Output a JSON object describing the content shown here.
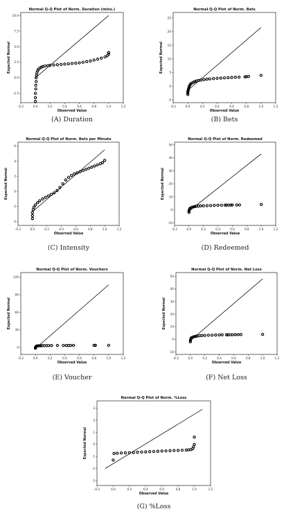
{
  "chart_data": [
    {
      "type": "scatter",
      "title": "Normal Q-Q Plot of Norm. Duration (mins.)",
      "xlabel": "Observed Value",
      "ylabel": "Expected Normal",
      "caption": "(A) Duration",
      "xlim": [
        -0.2,
        1.2
      ],
      "ylim": [
        -4,
        10.5
      ],
      "xticks": [
        -0.2,
        0.0,
        0.2,
        0.4,
        0.6,
        0.8,
        1.0,
        1.2
      ],
      "xtick_labels": [
        "-0.2",
        "0.0",
        "0.2",
        "0.4",
        "0.6",
        "0.8",
        "1.0",
        "1.2"
      ],
      "yticks": [
        -2.5,
        0.0,
        2.5,
        5.0,
        7.5,
        10.0
      ],
      "ytick_labels": [
        "-2.5",
        "0.0",
        "2.5",
        "5.0",
        "7.5",
        "10.0"
      ],
      "reference_line": [
        [
          0.0,
          0.0
        ],
        [
          1.0,
          10.0
        ]
      ],
      "points": [
        [
          0.0,
          -3.8
        ],
        [
          0.0,
          -3.2
        ],
        [
          0.0,
          -2.5
        ],
        [
          0.005,
          -1.8
        ],
        [
          0.005,
          -1.2
        ],
        [
          0.01,
          -0.6
        ],
        [
          0.01,
          0.0
        ],
        [
          0.015,
          0.4
        ],
        [
          0.02,
          0.8
        ],
        [
          0.03,
          1.1
        ],
        [
          0.04,
          1.35
        ],
        [
          0.06,
          1.55
        ],
        [
          0.08,
          1.7
        ],
        [
          0.1,
          1.8
        ],
        [
          0.13,
          1.9
        ],
        [
          0.17,
          1.95
        ],
        [
          0.2,
          2.0
        ],
        [
          0.25,
          2.05
        ],
        [
          0.3,
          2.1
        ],
        [
          0.35,
          2.15
        ],
        [
          0.4,
          2.2
        ],
        [
          0.45,
          2.25
        ],
        [
          0.5,
          2.3
        ],
        [
          0.55,
          2.35
        ],
        [
          0.6,
          2.4
        ],
        [
          0.65,
          2.5
        ],
        [
          0.7,
          2.6
        ],
        [
          0.75,
          2.7
        ],
        [
          0.8,
          2.85
        ],
        [
          0.85,
          3.0
        ],
        [
          0.9,
          3.15
        ],
        [
          0.95,
          3.35
        ],
        [
          0.98,
          3.55
        ],
        [
          1.0,
          3.8
        ],
        [
          1.0,
          4.05
        ]
      ]
    },
    {
      "type": "scatter",
      "title": "Normal Q-Q Plot of Norm. Bets",
      "xlabel": "Observed Value",
      "ylabel": "Expected Normal",
      "caption": "(B) Bets",
      "xlim": [
        -0.2,
        1.2
      ],
      "ylim": [
        -6,
        27
      ],
      "xticks": [
        -0.2,
        0.0,
        0.2,
        0.4,
        0.6,
        0.8,
        1.0,
        1.2
      ],
      "xtick_labels": [
        "-0.2",
        "0.0",
        "0.2",
        "0.4",
        "0.6",
        "0.8",
        "1.0",
        "1.2"
      ],
      "yticks": [
        -5,
        0,
        5,
        10,
        15,
        20,
        25
      ],
      "ytick_labels": [
        "-5",
        "0",
        "5",
        "10",
        "15",
        "20",
        "25"
      ],
      "reference_line": [
        [
          0.0,
          -1.5
        ],
        [
          1.0,
          21.5
        ]
      ],
      "points": [
        [
          0.0,
          -3.0
        ],
        [
          0.0,
          -2.5
        ],
        [
          0.0,
          -2.0
        ],
        [
          0.005,
          -1.5
        ],
        [
          0.01,
          -1.0
        ],
        [
          0.015,
          -0.5
        ],
        [
          0.02,
          0.0
        ],
        [
          0.03,
          0.5
        ],
        [
          0.04,
          0.9
        ],
        [
          0.06,
          1.2
        ],
        [
          0.08,
          1.5
        ],
        [
          0.1,
          1.75
        ],
        [
          0.12,
          1.95
        ],
        [
          0.15,
          2.15
        ],
        [
          0.18,
          2.3
        ],
        [
          0.22,
          2.45
        ],
        [
          0.26,
          2.6
        ],
        [
          0.3,
          2.7
        ],
        [
          0.35,
          2.82
        ],
        [
          0.4,
          2.92
        ],
        [
          0.45,
          3.0
        ],
        [
          0.5,
          3.08
        ],
        [
          0.55,
          3.15
        ],
        [
          0.6,
          3.22
        ],
        [
          0.65,
          3.28
        ],
        [
          0.7,
          3.33
        ],
        [
          0.78,
          3.45
        ],
        [
          0.8,
          3.5
        ],
        [
          0.83,
          3.6
        ],
        [
          1.0,
          4.0
        ]
      ]
    },
    {
      "type": "scatter",
      "title": "Normal Q-Q Plot of Norm. Bets per Minute",
      "xlabel": "Observed Value",
      "ylabel": "Expected Normal",
      "caption": "(C) Intensity",
      "xlim": [
        -0.2,
        1.2
      ],
      "ylim": [
        -4.5,
        6.5
      ],
      "xticks": [
        -0.2,
        0.0,
        0.2,
        0.4,
        0.6,
        0.8,
        1.0,
        1.2
      ],
      "xtick_labels": [
        "-0.2",
        "0.0",
        "0.2",
        "0.4",
        "0.6",
        "0.8",
        "1.0",
        "1.2"
      ],
      "yticks": [
        -4,
        -2,
        0,
        2,
        4,
        6
      ],
      "ytick_labels": [
        "-4",
        "-2",
        "0",
        "2",
        "4",
        "6"
      ],
      "reference_line": [
        [
          0.0,
          -2.7
        ],
        [
          1.0,
          5.5
        ]
      ],
      "points": [
        [
          0.0,
          -3.6
        ],
        [
          0.0,
          -3.2
        ],
        [
          0.0,
          -2.8
        ],
        [
          0.01,
          -2.4
        ],
        [
          0.02,
          -2.1
        ],
        [
          0.04,
          -1.8
        ],
        [
          0.07,
          -1.5
        ],
        [
          0.1,
          -1.25
        ],
        [
          0.14,
          -1.0
        ],
        [
          0.18,
          -0.8
        ],
        [
          0.22,
          -0.6
        ],
        [
          0.26,
          -0.4
        ],
        [
          0.3,
          -0.2
        ],
        [
          0.34,
          0.1
        ],
        [
          0.38,
          0.5
        ],
        [
          0.42,
          1.0
        ],
        [
          0.46,
          1.5
        ],
        [
          0.5,
          1.85
        ],
        [
          0.54,
          2.1
        ],
        [
          0.58,
          2.3
        ],
        [
          0.62,
          2.45
        ],
        [
          0.66,
          2.6
        ],
        [
          0.7,
          2.75
        ],
        [
          0.74,
          2.9
        ],
        [
          0.78,
          3.05
        ],
        [
          0.82,
          3.2
        ],
        [
          0.86,
          3.35
        ],
        [
          0.9,
          3.5
        ],
        [
          0.94,
          3.65
        ],
        [
          0.97,
          3.8
        ],
        [
          1.0,
          4.1
        ]
      ]
    },
    {
      "type": "scatter",
      "title": "Normal Q-Q Plot of Norm. Redeemed",
      "xlabel": "Observed Value",
      "ylabel": "Expected Normal",
      "caption": "(D) Redeemed",
      "xlim": [
        -0.2,
        1.2
      ],
      "ylim": [
        -12,
        52
      ],
      "xticks": [
        -0.2,
        0.0,
        0.2,
        0.4,
        0.6,
        0.8,
        1.0,
        1.2
      ],
      "xtick_labels": [
        "-0.2",
        "0.0",
        "0.2",
        "0.4",
        "0.6",
        "0.8",
        "1.0",
        "1.2"
      ],
      "yticks": [
        -10,
        0,
        10,
        20,
        30,
        40,
        50
      ],
      "ytick_labels": [
        "-10",
        "0",
        "10",
        "20",
        "30",
        "40",
        "50"
      ],
      "reference_line": [
        [
          0.0,
          -1.0
        ],
        [
          1.0,
          43.0
        ]
      ],
      "points": [
        [
          0.0,
          -2.0
        ],
        [
          0.0,
          -1.0
        ],
        [
          0.005,
          0.0
        ],
        [
          0.01,
          0.8
        ],
        [
          0.02,
          1.4
        ],
        [
          0.04,
          1.9
        ],
        [
          0.06,
          2.2
        ],
        [
          0.08,
          2.5
        ],
        [
          0.1,
          2.7
        ],
        [
          0.13,
          2.9
        ],
        [
          0.16,
          3.0
        ],
        [
          0.2,
          3.1
        ],
        [
          0.25,
          3.2
        ],
        [
          0.3,
          3.3
        ],
        [
          0.35,
          3.4
        ],
        [
          0.4,
          3.5
        ],
        [
          0.45,
          3.55
        ],
        [
          0.5,
          3.6
        ],
        [
          0.52,
          3.6
        ],
        [
          0.55,
          3.6
        ],
        [
          0.58,
          3.65
        ],
        [
          0.6,
          3.65
        ],
        [
          0.66,
          3.7
        ],
        [
          0.7,
          3.75
        ],
        [
          1.0,
          4.1
        ]
      ]
    },
    {
      "type": "scatter",
      "title": "Normal Q-Q Plot of Norm. Vouchers",
      "xlabel": "Observed Value",
      "ylabel": "Expected Normal",
      "caption": "(E) Voucher",
      "xlim": [
        -0.2,
        1.2
      ],
      "ylim": [
        -12,
        128
      ],
      "xticks": [
        -0.2,
        0.0,
        0.2,
        0.4,
        0.6,
        0.8,
        1.0,
        1.2
      ],
      "xtick_labels": [
        "-0.2",
        "0.0",
        "0.2",
        "0.4",
        "0.6",
        "0.8",
        "1.0",
        "1.2"
      ],
      "yticks": [
        0,
        30,
        60,
        90,
        120
      ],
      "ytick_labels": [
        "0",
        "30",
        "60",
        "90",
        "120"
      ],
      "reference_line": [
        [
          0.0,
          -2.0
        ],
        [
          1.0,
          107.0
        ]
      ],
      "points": [
        [
          0.0,
          -1.5
        ],
        [
          0.0,
          0.0
        ],
        [
          0.005,
          1.0
        ],
        [
          0.01,
          1.8
        ],
        [
          0.02,
          2.3
        ],
        [
          0.03,
          2.6
        ],
        [
          0.05,
          2.8
        ],
        [
          0.07,
          2.9
        ],
        [
          0.09,
          3.0
        ],
        [
          0.12,
          3.05
        ],
        [
          0.15,
          3.1
        ],
        [
          0.18,
          3.15
        ],
        [
          0.22,
          3.2
        ],
        [
          0.3,
          3.25
        ],
        [
          0.38,
          3.3
        ],
        [
          0.42,
          3.3
        ],
        [
          0.45,
          3.35
        ],
        [
          0.48,
          3.35
        ],
        [
          0.52,
          3.4
        ],
        [
          0.8,
          3.5
        ],
        [
          0.82,
          3.5
        ],
        [
          1.0,
          3.6
        ]
      ]
    },
    {
      "type": "scatter",
      "title": "Normal Q-Q Plot of Norm. Net Loss",
      "xlabel": "Observed Value",
      "ylabel": "Expected Normal",
      "caption": "(F) Net Loss",
      "xlim": [
        -0.2,
        1.2
      ],
      "ylim": [
        -12,
        53
      ],
      "xticks": [
        -0.2,
        0.0,
        0.2,
        0.4,
        0.6,
        0.8,
        1.0,
        1.2
      ],
      "xtick_labels": [
        "-0.2",
        "0.0",
        "0.2",
        "0.4",
        "0.6",
        "0.8",
        "1.0",
        "1.2"
      ],
      "yticks": [
        -10,
        0,
        10,
        20,
        30,
        40,
        50
      ],
      "ytick_labels": [
        "-10",
        "0",
        "10",
        "20",
        "30",
        "40",
        "50"
      ],
      "reference_line": [
        [
          0.0,
          -1.0
        ],
        [
          1.0,
          48.0
        ]
      ],
      "points": [
        [
          0.0,
          -2.0
        ],
        [
          0.0,
          -1.0
        ],
        [
          0.005,
          0.0
        ],
        [
          0.01,
          0.8
        ],
        [
          0.02,
          1.4
        ],
        [
          0.04,
          1.9
        ],
        [
          0.06,
          2.2
        ],
        [
          0.08,
          2.45
        ],
        [
          0.1,
          2.65
        ],
        [
          0.13,
          2.85
        ],
        [
          0.16,
          3.0
        ],
        [
          0.2,
          3.1
        ],
        [
          0.25,
          3.2
        ],
        [
          0.3,
          3.3
        ],
        [
          0.35,
          3.4
        ],
        [
          0.4,
          3.5
        ],
        [
          0.44,
          3.55
        ],
        [
          0.5,
          3.6
        ],
        [
          0.52,
          3.6
        ],
        [
          0.55,
          3.65
        ],
        [
          0.58,
          3.65
        ],
        [
          0.62,
          3.7
        ],
        [
          0.66,
          3.7
        ],
        [
          0.7,
          3.75
        ],
        [
          1.0,
          3.9
        ]
      ]
    },
    {
      "type": "scatter",
      "title": "Normal Q-Q Plot of Norm. %Loss",
      "xlabel": "Observed Value",
      "ylabel": "Expected Normal",
      "caption": "(G) %Loss",
      "xlim": [
        -0.2,
        1.2
      ],
      "ylim": [
        -3.4,
        3.6
      ],
      "xticks": [
        -0.2,
        0.0,
        0.2,
        0.4,
        0.6,
        0.8,
        1.0,
        1.2
      ],
      "xtick_labels": [
        "-0.2",
        "0.0",
        "0.2",
        "0.4",
        "0.6",
        "0.8",
        "1.0",
        "1.2"
      ],
      "yticks": [
        -3,
        -2,
        -1,
        0,
        1,
        2,
        3
      ],
      "ytick_labels": [
        "-3",
        "-2",
        "-1",
        "0",
        "1",
        "2",
        "3"
      ],
      "reference_line": [
        [
          -0.1,
          -2.0
        ],
        [
          1.1,
          2.9
        ]
      ],
      "points": [
        [
          0.0,
          -1.3
        ],
        [
          0.01,
          -0.75
        ],
        [
          0.05,
          -0.73
        ],
        [
          0.1,
          -0.71
        ],
        [
          0.15,
          -0.7
        ],
        [
          0.2,
          -0.68
        ],
        [
          0.25,
          -0.67
        ],
        [
          0.3,
          -0.65
        ],
        [
          0.35,
          -0.63
        ],
        [
          0.4,
          -0.62
        ],
        [
          0.45,
          -0.6
        ],
        [
          0.5,
          -0.59
        ],
        [
          0.55,
          -0.57
        ],
        [
          0.6,
          -0.55
        ],
        [
          0.65,
          -0.54
        ],
        [
          0.7,
          -0.52
        ],
        [
          0.75,
          -0.51
        ],
        [
          0.8,
          -0.5
        ],
        [
          0.85,
          -0.48
        ],
        [
          0.9,
          -0.47
        ],
        [
          0.93,
          -0.45
        ],
        [
          0.96,
          -0.43
        ],
        [
          0.98,
          -0.35
        ],
        [
          0.99,
          -0.2
        ],
        [
          1.0,
          0.0
        ],
        [
          1.0,
          0.6
        ]
      ]
    }
  ]
}
